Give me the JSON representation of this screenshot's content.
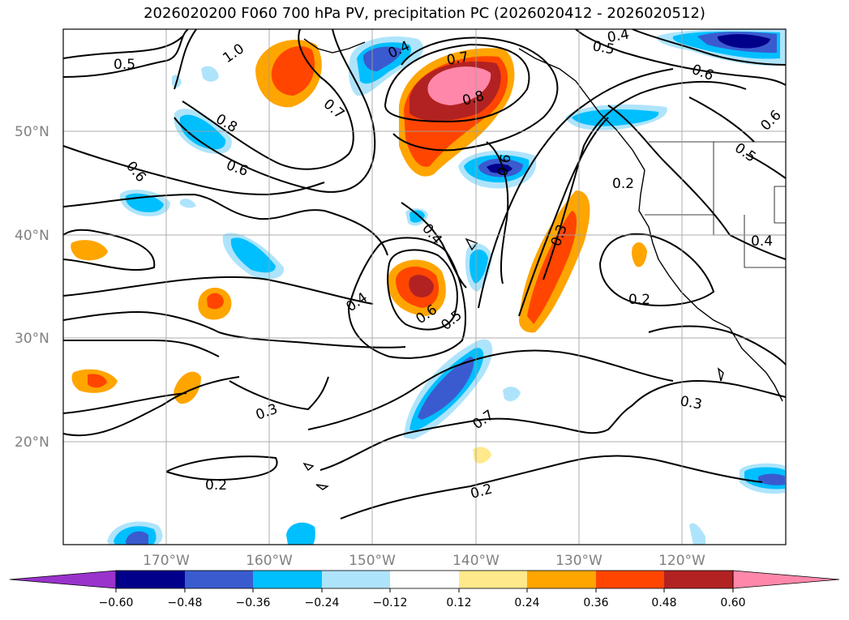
{
  "title": "2026020200 F060 700 hPa PV, precipitation PC (2026020412 - 2026020512)",
  "lat_labels": [
    "20°N",
    "30°N",
    "40°N",
    "50°N"
  ],
  "lon_labels": [
    "170°W",
    "160°W",
    "150°W",
    "140°W",
    "130°W",
    "120°W"
  ],
  "contour_labels": [
    "0.5",
    "1.0",
    "0.4",
    "0.7",
    "0.8",
    "0.8",
    "0.7",
    "0.6",
    "0.6",
    "0.5",
    "0.5",
    "0.4",
    "0.6",
    "0.2",
    "0.3",
    "0.4",
    "0.6",
    "0.5",
    "0.4",
    "0.2",
    "0.3",
    "0.3",
    "0.2",
    "0.2",
    "0.6",
    "0.6",
    "0.4"
  ],
  "colorbar": {
    "ticks": [
      "−0.60",
      "−0.48",
      "−0.36",
      "−0.24",
      "−0.12",
      "0.12",
      "0.24",
      "0.36",
      "0.48",
      "0.60"
    ],
    "colors": [
      "#9933cc",
      "#00008b",
      "#3a5bcf",
      "#00bfff",
      "#aee4fb",
      "#ffffff",
      "#ffe98a",
      "#ffa500",
      "#ff4500",
      "#b22222",
      "#ff88aa"
    ]
  }
}
